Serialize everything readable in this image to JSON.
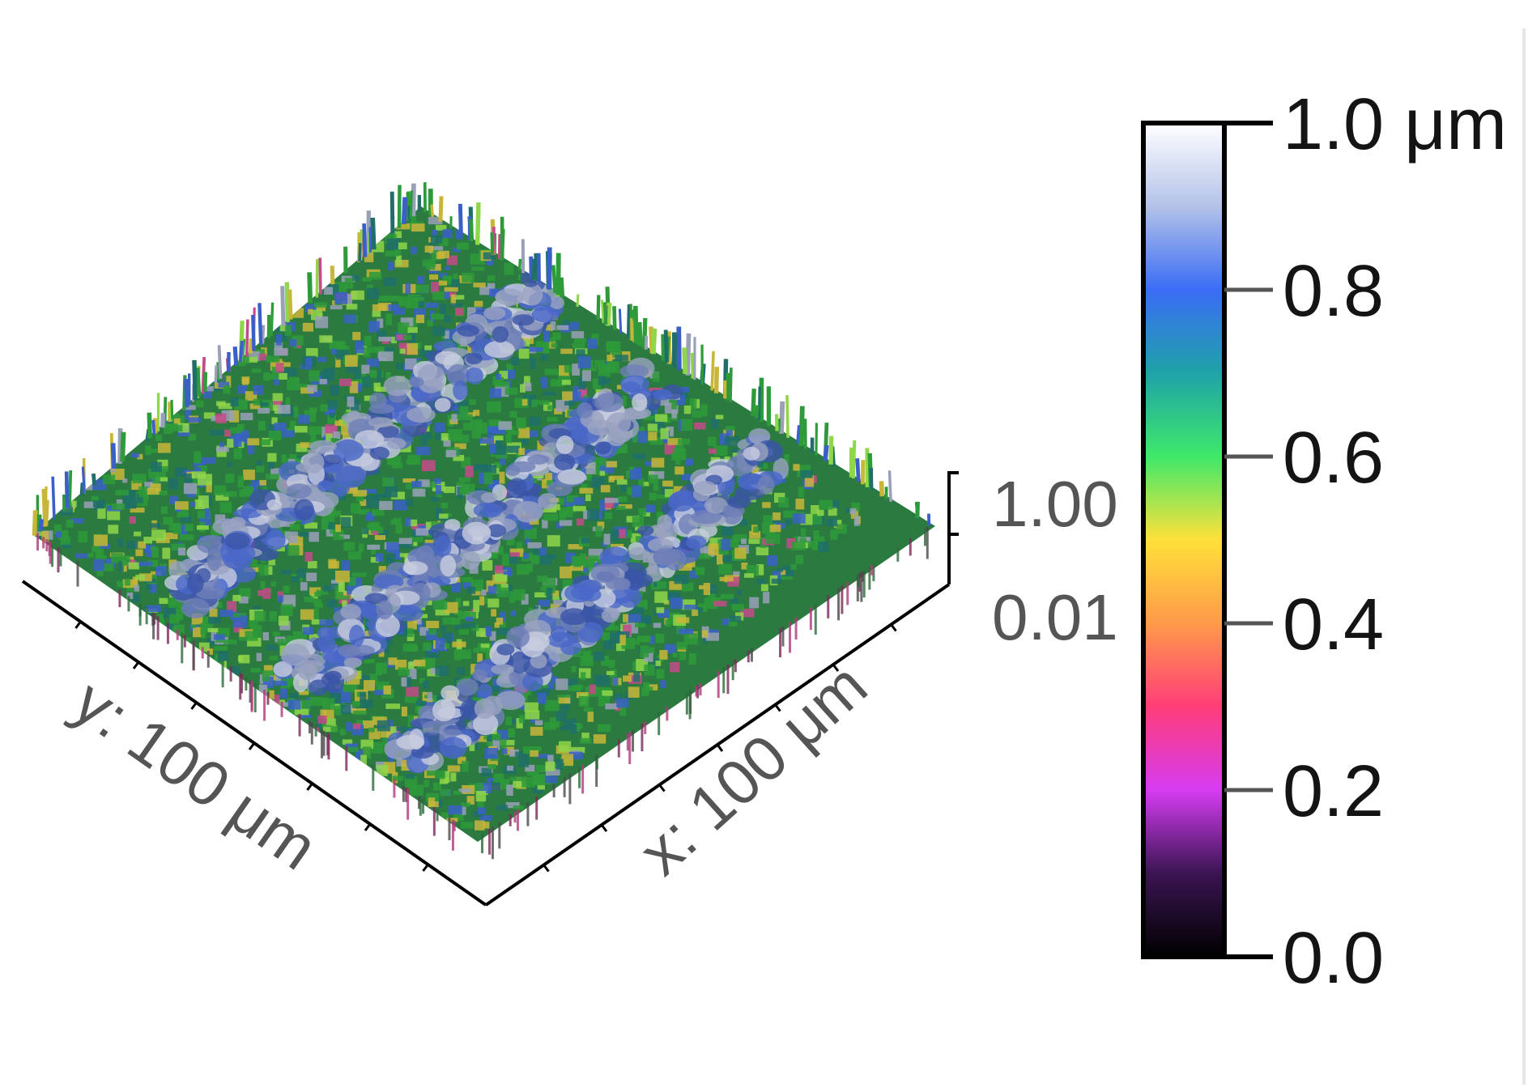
{
  "chart_data": {
    "type": "surface3d",
    "title": "",
    "x_axis": {
      "label": "x: 100 μm",
      "range": [
        0,
        100
      ],
      "unit": "μm"
    },
    "y_axis": {
      "label": "y: 100 μm",
      "range": [
        0,
        100
      ],
      "unit": "μm"
    },
    "z_axis": {
      "ticks": [
        "1.00",
        "0.01"
      ],
      "range": [
        0.01,
        1.0
      ]
    },
    "colorbar": {
      "range": [
        0.0,
        1.0
      ],
      "unit": "μm",
      "ticks": [
        {
          "value": 1.0,
          "label": "1.0 μm"
        },
        {
          "value": 0.8,
          "label": "0.8"
        },
        {
          "value": 0.6,
          "label": "0.6"
        },
        {
          "value": 0.4,
          "label": "0.4"
        },
        {
          "value": 0.2,
          "label": "0.2"
        },
        {
          "value": 0.0,
          "label": "0.0"
        }
      ],
      "colormap": [
        {
          "v": 0.0,
          "c": "#000000"
        },
        {
          "v": 0.1,
          "c": "#3a1452"
        },
        {
          "v": 0.2,
          "c": "#d63cf2"
        },
        {
          "v": 0.3,
          "c": "#ff3d78"
        },
        {
          "v": 0.4,
          "c": "#ff9a4a"
        },
        {
          "v": 0.5,
          "c": "#ffe13a"
        },
        {
          "v": 0.6,
          "c": "#3fe86a"
        },
        {
          "v": 0.7,
          "c": "#1fa3a8"
        },
        {
          "v": 0.8,
          "c": "#3b6cf5"
        },
        {
          "v": 0.9,
          "c": "#b3c2e8"
        },
        {
          "v": 1.0,
          "c": "#ffffff"
        }
      ]
    },
    "surface_mix": [
      {
        "color": "#2e9a3a",
        "weight": 0.34
      },
      {
        "color": "#1f6e6a",
        "weight": 0.16
      },
      {
        "color": "#3a60c8",
        "weight": 0.14
      },
      {
        "color": "#c8b63a",
        "weight": 0.12
      },
      {
        "color": "#8fd64a",
        "weight": 0.12
      },
      {
        "color": "#9aa0b8",
        "weight": 0.08
      },
      {
        "color": "#c44a8a",
        "weight": 0.04
      }
    ]
  }
}
